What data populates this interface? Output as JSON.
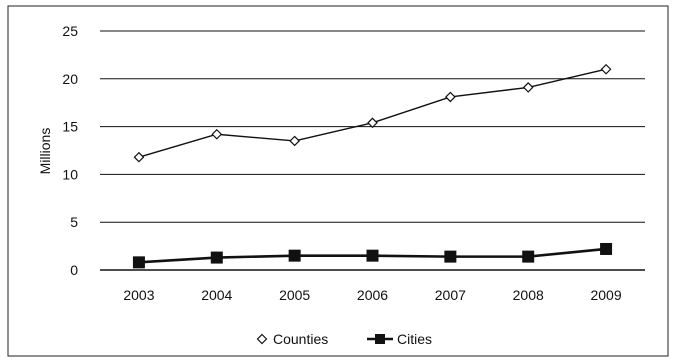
{
  "chart_data": {
    "type": "line",
    "title": "",
    "xlabel": "",
    "ylabel": "Millions",
    "ylim": [
      0,
      25
    ],
    "yticks": [
      0,
      5,
      10,
      15,
      20,
      25
    ],
    "grid": true,
    "legend_position": "bottom",
    "categories": [
      "2003",
      "2004",
      "2005",
      "2006",
      "2007",
      "2008",
      "2009"
    ],
    "series": [
      {
        "name": "Counties",
        "marker": "diamond-open",
        "color": "#111111",
        "values": [
          11.8,
          14.2,
          13.5,
          15.4,
          18.1,
          19.1,
          21.0
        ]
      },
      {
        "name": "Cities",
        "marker": "square-filled",
        "color": "#111111",
        "values": [
          0.8,
          1.3,
          1.5,
          1.5,
          1.4,
          1.4,
          2.2
        ]
      }
    ]
  }
}
